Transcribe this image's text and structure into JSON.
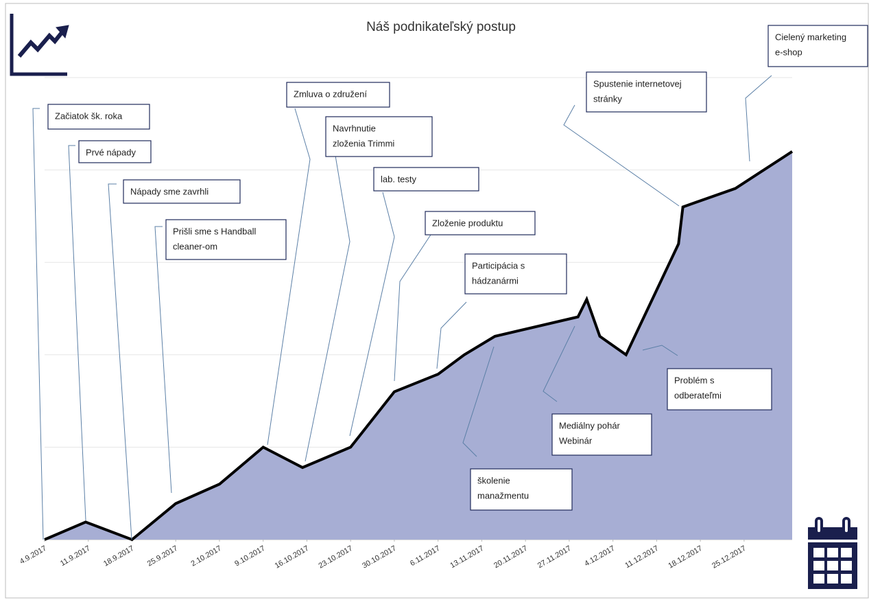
{
  "chart_data": {
    "type": "area",
    "title": "Náš podnikateľský postup",
    "xlim": [
      0,
      17.1
    ],
    "ylim": [
      0,
      5
    ],
    "yticks": [
      0,
      1,
      2,
      3,
      4,
      5
    ],
    "grid": true,
    "xticks": [
      {
        "value": 0,
        "label": "4.9.2017"
      },
      {
        "value": 1,
        "label": "11.9.2017"
      },
      {
        "value": 2,
        "label": "18.9.2017"
      },
      {
        "value": 3,
        "label": "25.9.2017"
      },
      {
        "value": 4,
        "label": "2.10.2017"
      },
      {
        "value": 5,
        "label": "9.10.2017"
      },
      {
        "value": 6,
        "label": "16.10.2017"
      },
      {
        "value": 7,
        "label": "23.10.2017"
      },
      {
        "value": 8,
        "label": "30.10.2017"
      },
      {
        "value": 9,
        "label": "6.11.2017"
      },
      {
        "value": 10,
        "label": "13.11.2017"
      },
      {
        "value": 11,
        "label": "20.11.2017"
      },
      {
        "value": 12,
        "label": "27.11.2017"
      },
      {
        "value": 13,
        "label": "4.12.2017"
      },
      {
        "value": 14,
        "label": "11.12.2017"
      },
      {
        "value": 15,
        "label": "18.12.2017"
      },
      {
        "value": 16,
        "label": "25.12.2017"
      }
    ],
    "series": [
      {
        "color": "#a7aed4",
        "x": [
          0,
          0.94,
          2,
          3,
          4,
          5,
          5.9,
          7,
          8,
          9,
          9.6,
          10.3,
          12.2,
          12.4,
          12.7,
          13.3,
          14.1,
          14.5,
          14.6,
          15.8,
          17.1
        ],
        "values": [
          0,
          0.19,
          0,
          0.39,
          0.6,
          1.0,
          0.78,
          1.0,
          1.6,
          1.79,
          2.0,
          2.2,
          2.41,
          2.6,
          2.2,
          2.0,
          2.8,
          3.2,
          3.6,
          3.8,
          4.2
        ]
      }
    ],
    "annotations": [
      [
        "Začiatok šk. roka"
      ],
      [
        "Prvé nápady"
      ],
      [
        "Nápady sme zavrhli"
      ],
      [
        "Prišli sme s Handball",
        "cleaner-om"
      ],
      [
        "Zmluva o združení"
      ],
      [
        "Navrhnutie",
        "zloženia Trimmi"
      ],
      [
        "lab. testy"
      ],
      [
        "Zloženie produktu"
      ],
      [
        "Participácia s",
        "hádzanármi"
      ],
      [
        "školenie",
        "manažmentu"
      ],
      [
        "Mediálny pohár",
        "Webinár"
      ],
      [
        "Problém s",
        "odberateľmi"
      ],
      [
        "Spustenie internetovej",
        "stránky"
      ],
      [
        "Cielený marketing",
        "e-shop"
      ]
    ]
  }
}
